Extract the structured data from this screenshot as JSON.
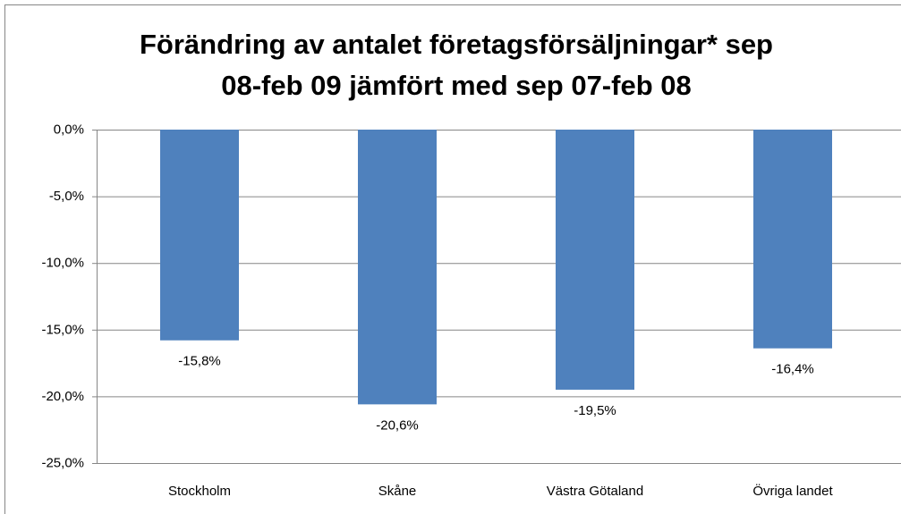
{
  "chart_data": {
    "type": "bar",
    "title": [
      "Förändring av antalet företagsförsäljningar* sep",
      "08-feb 09 jämfört med sep 07-feb 08"
    ],
    "categories": [
      "Stockholm",
      "Skåne",
      "Västra Götaland",
      "Övriga landet"
    ],
    "values": [
      -15.8,
      -20.6,
      -19.5,
      -16.4
    ],
    "value_labels": [
      "-15,8%",
      "-20,6%",
      "-19,5%",
      "-16,4%"
    ],
    "color": "#4f81bd",
    "ylim": [
      -25,
      0
    ],
    "yticks": [
      {
        "value": 0,
        "label": "0,0%"
      },
      {
        "value": -5,
        "label": "-5,0%"
      },
      {
        "value": -10,
        "label": "-10,0%"
      },
      {
        "value": -15,
        "label": "-15,0%"
      },
      {
        "value": -20,
        "label": "-20,0%"
      },
      {
        "value": -25,
        "label": "-25,0%"
      }
    ],
    "grid": true
  }
}
